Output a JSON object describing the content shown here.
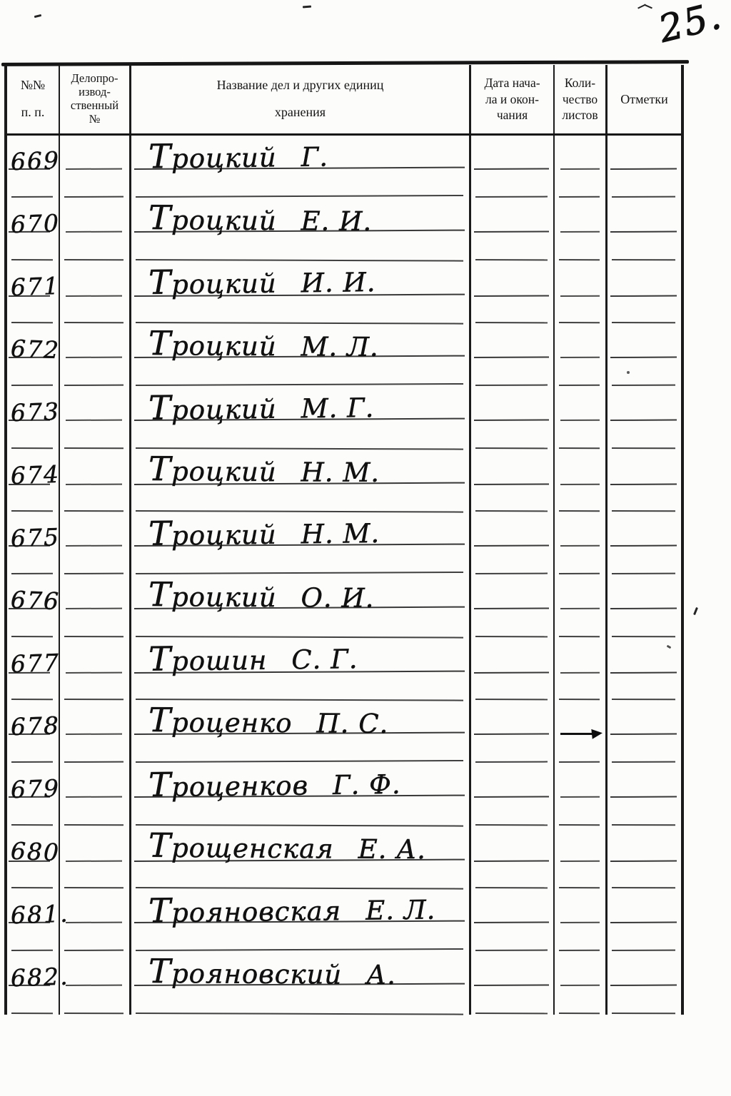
{
  "page": {
    "handwritten_page_number": "25."
  },
  "table": {
    "columns": [
      {
        "label": "№№\nп. п."
      },
      {
        "label": "Делопро-\nизвод-\nственный\n№"
      },
      {
        "label": "Название дел и других единиц\nхранения"
      },
      {
        "label": "Дата нача-\nла и окон-\nчания"
      },
      {
        "label": "Коли-\nчество\nлистов"
      },
      {
        "label": "Отметки"
      }
    ],
    "rows": [
      {
        "no": "669",
        "surname": "Троцкий",
        "initials": "Г."
      },
      {
        "no": "670",
        "surname": "Троцкий",
        "initials": "Е. И."
      },
      {
        "no": "671",
        "surname": "Троцкий",
        "initials": "И. И."
      },
      {
        "no": "672",
        "surname": "Троцкий",
        "initials": "М. Л."
      },
      {
        "no": "673",
        "surname": "Троцкий",
        "initials": "М. Г."
      },
      {
        "no": "674",
        "surname": "Троцкий",
        "initials": "Н. М."
      },
      {
        "no": "675",
        "surname": "Троцкий",
        "initials": "Н. М."
      },
      {
        "no": "676",
        "surname": "Троцкий",
        "initials": "О. И."
      },
      {
        "no": "677",
        "surname": "Трошин",
        "initials": "С. Г."
      },
      {
        "no": "678",
        "surname": "Троценко",
        "initials": "П. С."
      },
      {
        "no": "679",
        "surname": "Троценков",
        "initials": "Г. Ф."
      },
      {
        "no": "680",
        "surname": "Трощенская",
        "initials": "Е. А."
      },
      {
        "no": "681.",
        "surname": "Трояновская",
        "initials": "Е. Л."
      },
      {
        "no": "682.",
        "surname": "Трояновский",
        "initials": "А."
      }
    ],
    "artifacts": {
      "arrow_ink_mark_row_no": "678"
    }
  }
}
